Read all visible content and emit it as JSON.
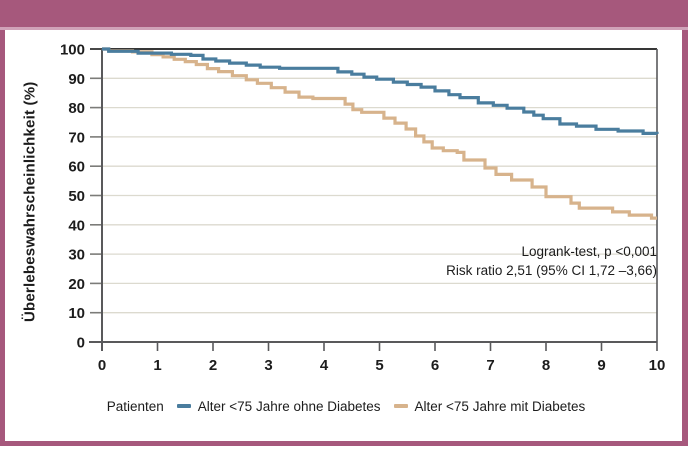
{
  "figure": {
    "kind": "kaplan-meier-survival-figure",
    "accent_color": "#a6587c",
    "background_color": "#ffffff"
  },
  "chart_data": {
    "type": "line",
    "variant": "kaplan-meier-step",
    "title": "",
    "xlabel": "",
    "ylabel": "Überlebeswahrscheinlichkeit (%)",
    "xlim": [
      0,
      10
    ],
    "ylim": [
      0,
      100
    ],
    "x_ticks": [
      0,
      1,
      2,
      3,
      4,
      5,
      6,
      7,
      8,
      9,
      10
    ],
    "y_ticks": [
      0,
      10,
      20,
      30,
      40,
      50,
      60,
      70,
      80,
      90,
      100
    ],
    "grid": "horizontal",
    "legend_position": "bottom-center",
    "legend_title": "Patienten",
    "annotation": {
      "line1": "Logrank-test, p <0,001",
      "line2": "Risk ratio 2,51 (95% CI 1,72 –3,66)"
    },
    "colors": {
      "grid": "#dcdacf",
      "axis": "#59595b",
      "tick": "#7c7c79",
      "top_line": "#1a1a1a",
      "text": "#1c1c1c"
    },
    "series": [
      {
        "id": "ohne-diabetes",
        "name": "Alter <75 Jahre ohne Diabetes",
        "color": "#4a7d9e",
        "points": [
          [
            0,
            100
          ],
          [
            0.12,
            99.2
          ],
          [
            0.65,
            98.6
          ],
          [
            1.25,
            98.2
          ],
          [
            1.6,
            97.8
          ],
          [
            1.82,
            96.6
          ],
          [
            2.05,
            95.9
          ],
          [
            2.3,
            95.2
          ],
          [
            2.6,
            94.5
          ],
          [
            2.85,
            93.8
          ],
          [
            3.2,
            93.4
          ],
          [
            4.25,
            92.2
          ],
          [
            4.5,
            91.4
          ],
          [
            4.72,
            90.4
          ],
          [
            4.95,
            89.7
          ],
          [
            5.25,
            88.7
          ],
          [
            5.5,
            87.9
          ],
          [
            5.75,
            87
          ],
          [
            6,
            85.7
          ],
          [
            6.25,
            84.4
          ],
          [
            6.45,
            83.4
          ],
          [
            6.78,
            81.6
          ],
          [
            7.05,
            80.8
          ],
          [
            7.3,
            79.8
          ],
          [
            7.6,
            78.5
          ],
          [
            7.78,
            77.4
          ],
          [
            7.95,
            76.2
          ],
          [
            8.25,
            74.4
          ],
          [
            8.55,
            73.7
          ],
          [
            8.9,
            72.6
          ],
          [
            9.3,
            72
          ],
          [
            9.75,
            71.2
          ],
          [
            10,
            71
          ]
        ]
      },
      {
        "id": "mit-diabetes",
        "name": "Alter <75 Jahre mit Diabetes",
        "color": "#d7b38c",
        "points": [
          [
            0,
            100
          ],
          [
            0.12,
            99.4
          ],
          [
            0.55,
            99
          ],
          [
            0.9,
            98.1
          ],
          [
            1.1,
            97.3
          ],
          [
            1.3,
            96.5
          ],
          [
            1.5,
            95.7
          ],
          [
            1.7,
            94.7
          ],
          [
            1.9,
            93.3
          ],
          [
            2.1,
            92.3
          ],
          [
            2.35,
            90.9
          ],
          [
            2.6,
            89.5
          ],
          [
            2.8,
            88.3
          ],
          [
            3.05,
            86.8
          ],
          [
            3.3,
            85.3
          ],
          [
            3.55,
            83.6
          ],
          [
            3.8,
            83.1
          ],
          [
            4.38,
            81.2
          ],
          [
            4.52,
            79.3
          ],
          [
            4.68,
            78.4
          ],
          [
            5.08,
            76.4
          ],
          [
            5.28,
            74.7
          ],
          [
            5.48,
            72.7
          ],
          [
            5.65,
            70.3
          ],
          [
            5.8,
            68.3
          ],
          [
            5.95,
            66.2
          ],
          [
            6.15,
            65.3
          ],
          [
            6.4,
            64.7
          ],
          [
            6.52,
            62.1
          ],
          [
            6.9,
            59.4
          ],
          [
            7.1,
            57.2
          ],
          [
            7.38,
            55.3
          ],
          [
            7.75,
            52.9
          ],
          [
            8,
            49.6
          ],
          [
            8.45,
            47.4
          ],
          [
            8.6,
            45.7
          ],
          [
            9.2,
            44.4
          ],
          [
            9.5,
            43.3
          ],
          [
            9.9,
            42.3
          ],
          [
            10,
            42.3
          ]
        ]
      }
    ]
  }
}
